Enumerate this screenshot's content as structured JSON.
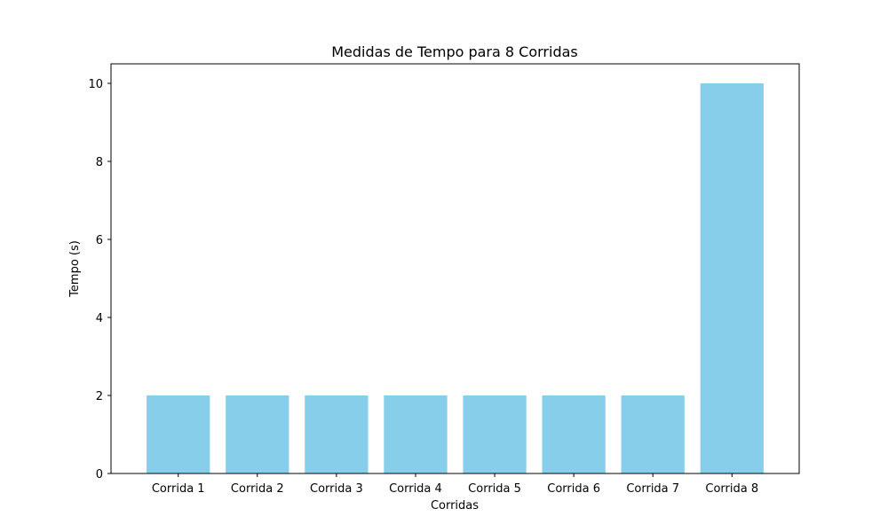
{
  "chart_data": {
    "type": "bar",
    "title": "Medidas de Tempo para 8 Corridas",
    "xlabel": "Corridas",
    "ylabel": "Tempo (s)",
    "categories": [
      "Corrida 1",
      "Corrida 2",
      "Corrida 3",
      "Corrida 4",
      "Corrida 5",
      "Corrida 6",
      "Corrida 7",
      "Corrida 8"
    ],
    "values": [
      2,
      2,
      2,
      2,
      2,
      2,
      2,
      10
    ],
    "ylim": [
      0,
      10.5
    ],
    "yticks": [
      0,
      2,
      4,
      6,
      8,
      10
    ],
    "bar_color": "#87ceeb",
    "grid": false,
    "legend": "none"
  }
}
